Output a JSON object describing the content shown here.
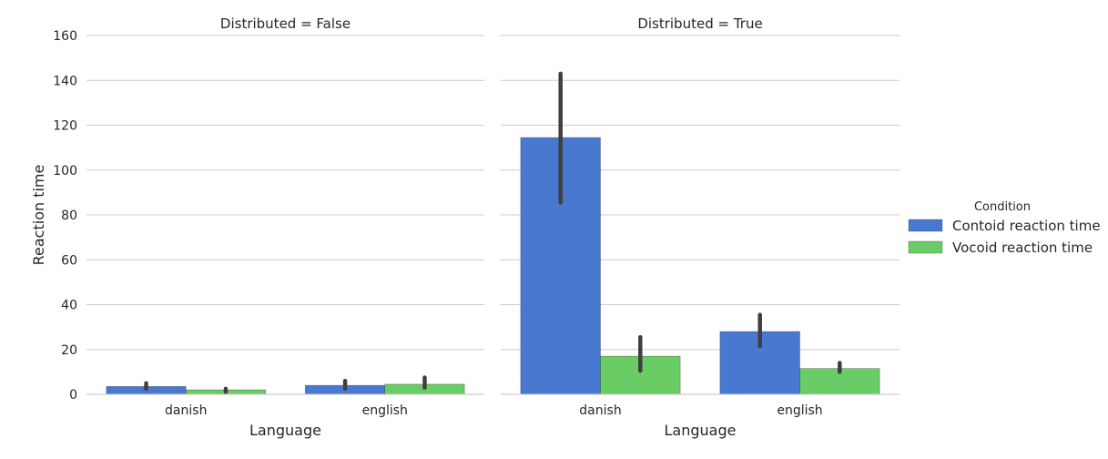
{
  "chart_data": {
    "type": "bar",
    "ylabel": "Reaction time",
    "xlabel": "Language",
    "ylim": [
      0,
      160
    ],
    "yticks": [
      0,
      20,
      40,
      60,
      80,
      100,
      120,
      140,
      160
    ],
    "categories": [
      "danish",
      "english"
    ],
    "grid": "horizontal",
    "legend": {
      "title": "Condition",
      "placement": "right",
      "entries": [
        {
          "label": "Contoid reaction time",
          "color": "#4878d0"
        },
        {
          "label": "Vocoid reaction time",
          "color": "#6acc64"
        }
      ]
    },
    "panels": [
      {
        "title": "Distributed = False",
        "series": [
          {
            "name": "Contoid reaction time",
            "values": [
              3.5,
              4.0
            ],
            "err_low": [
              2.5,
              2.5
            ],
            "err_high": [
              5.0,
              6.0
            ]
          },
          {
            "name": "Vocoid reaction time",
            "values": [
              2.0,
              4.5
            ],
            "err_low": [
              1.0,
              3.0
            ],
            "err_high": [
              2.5,
              7.5
            ]
          }
        ]
      },
      {
        "title": "Distributed = True",
        "series": [
          {
            "name": "Contoid reaction time",
            "values": [
              114.5,
              28.0
            ],
            "err_low": [
              85.5,
              21.5
            ],
            "err_high": [
              143.0,
              35.5
            ]
          },
          {
            "name": "Vocoid reaction time",
            "values": [
              17.0,
              11.5
            ],
            "err_low": [
              10.5,
              10.0
            ],
            "err_high": [
              25.5,
              14.0
            ]
          }
        ]
      }
    ]
  }
}
